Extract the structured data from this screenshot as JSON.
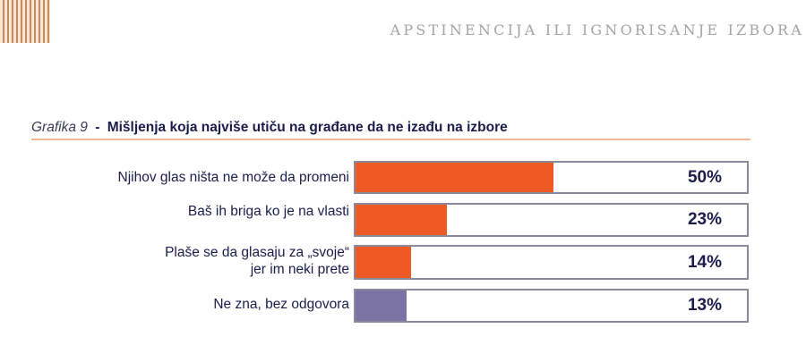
{
  "header": {
    "section_title": "APSTINENCIJA ILI IGNORISANJE IZBORA"
  },
  "figure": {
    "label": "Grafika 9",
    "separator": "-",
    "title": "Mišljenja koja najviše utiču na građane da ne izađu na izbore"
  },
  "colors": {
    "orange": "#ef5a24",
    "purple": "#7b73a3",
    "text_navy": "#1c1b4a",
    "track_border": "#8a8a9c",
    "rule": "#f0b893"
  },
  "chart_data": {
    "type": "bar",
    "orientation": "horizontal",
    "title": "Grafika 9 - Mišljenja koja najviše utiču na građane da ne izađu na izbore",
    "categories": [
      "Njihov glas ništa ne može da promeni",
      "Baš ih briga ko je na vlasti",
      "Plaše se da glasaju za „svoje“ jer im neki prete",
      "Ne zna, bez odgovora"
    ],
    "values": [
      50,
      23,
      14,
      13
    ],
    "value_labels": [
      "50%",
      "23%",
      "14%",
      "13%"
    ],
    "bar_colors": [
      "#ef5a24",
      "#ef5a24",
      "#ef5a24",
      "#7b73a3"
    ],
    "xlabel": "",
    "ylabel": "",
    "xlim": [
      0,
      100
    ],
    "grid": false,
    "legend": false
  },
  "rows": [
    {
      "label_lines": [
        "Njihov glas ništa ne može da promeni"
      ],
      "value": 50,
      "value_label": "50%",
      "color": "#ef5a24"
    },
    {
      "label_lines": [
        "Baš ih briga ko je na vlasti"
      ],
      "value": 23,
      "value_label": "23%",
      "color": "#ef5a24"
    },
    {
      "label_lines": [
        "Plaše se da glasaju za „svoje“",
        "jer im neki prete"
      ],
      "value": 14,
      "value_label": "14%",
      "color": "#ef5a24"
    },
    {
      "label_lines": [
        "Ne zna, bez odgovora"
      ],
      "value": 13,
      "value_label": "13%",
      "color": "#7b73a3"
    }
  ]
}
